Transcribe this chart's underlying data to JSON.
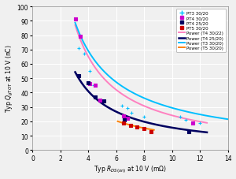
{
  "xlim": [
    0,
    14
  ],
  "ylim": [
    0,
    100
  ],
  "xticks": [
    0,
    2,
    4,
    6,
    8,
    10,
    12,
    14
  ],
  "yticks": [
    0,
    10,
    20,
    30,
    40,
    50,
    60,
    70,
    80,
    90,
    100
  ],
  "bg_color": "#F0F0F0",
  "scatter_PT3": {
    "x": [
      3.3,
      3.7,
      4.1,
      4.4,
      6.4,
      6.8,
      7.1,
      8.0,
      10.6,
      11.0,
      12.0
    ],
    "y": [
      71,
      67,
      55,
      45,
      31,
      29,
      26,
      23,
      23,
      21,
      19
    ],
    "color": "#00BFFF",
    "marker": "+",
    "label": "PT3 30/20"
  },
  "scatter_PT4_30": {
    "x": [
      3.1,
      3.4,
      4.1,
      4.5,
      4.8,
      6.5,
      6.8,
      11.5
    ],
    "y": [
      91,
      79,
      46,
      45,
      35,
      24,
      22,
      19
    ],
    "color": "#CC00CC",
    "marker": "s",
    "label": "PT4 30/20"
  },
  "scatter_PT4_25": {
    "x": [
      3.3,
      4.0,
      4.5,
      5.1,
      6.6,
      11.2
    ],
    "y": [
      52,
      47,
      37,
      34,
      21,
      13
    ],
    "color": "#000060",
    "marker": "s",
    "label": "PT4 25/20"
  },
  "scatter_PT5": {
    "x": [
      6.5,
      7.0,
      7.5,
      8.0,
      8.5
    ],
    "y": [
      19,
      17,
      16,
      15,
      13
    ],
    "color": "#CC0000",
    "marker": "s",
    "label": "PT5 30/20"
  },
  "power_T4_30": {
    "x_range": [
      3.05,
      12.5
    ],
    "a": 290,
    "b": -1.08,
    "color": "#FF80C0",
    "lw": 1.4,
    "label": "Power (T4 30/22)"
  },
  "power_T4_25": {
    "x_range": [
      3.05,
      12.5
    ],
    "a": 175,
    "b": -1.05,
    "color": "#000060",
    "lw": 1.8,
    "label": "Power (T4 25/20)"
  },
  "power_T3_30": {
    "x_range": [
      3.05,
      14.0
    ],
    "a": 250,
    "b": -0.93,
    "color": "#00BFFF",
    "lw": 1.4,
    "label": "Power (T3 30/20)"
  },
  "power_T5_30": {
    "x_range": [
      6.1,
      8.7
    ],
    "a": 122,
    "b": -1.0,
    "color": "#FF8000",
    "lw": 1.4,
    "label": "Power (T5 30/20)"
  }
}
